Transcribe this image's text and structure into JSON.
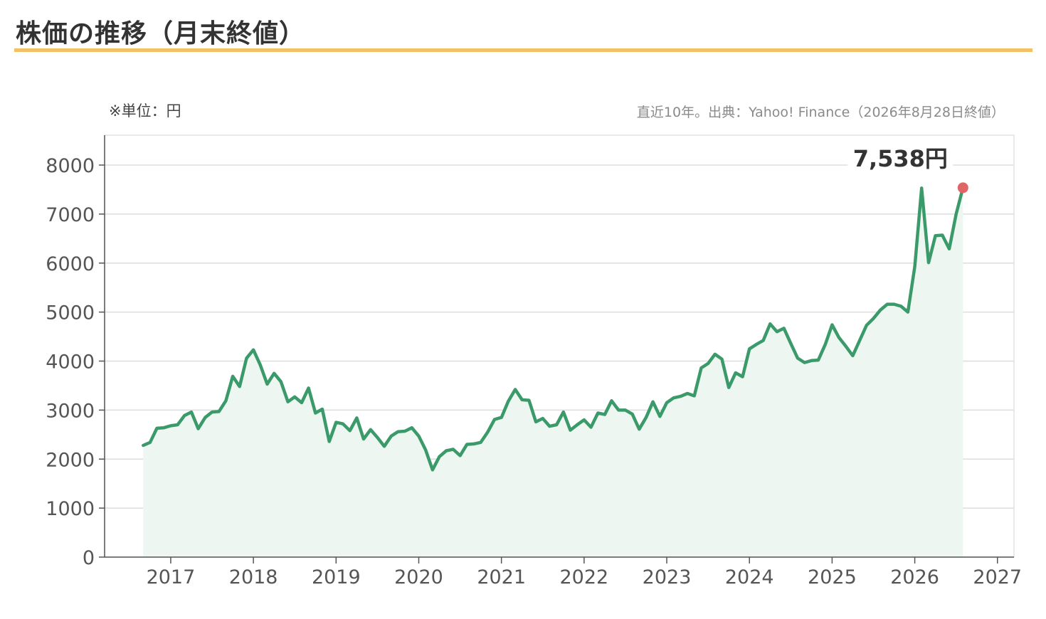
{
  "header": {
    "title": "株価の推移（月末終値）"
  },
  "chart_meta": {
    "unit_note": "※単位：円",
    "source_note": "直近10年。出典：Yahoo! Finance（2026年8月28日終値）",
    "last_value_label": "7,538円"
  },
  "colors": {
    "line": "#3a9a6a",
    "area": "#edf6f0",
    "marker": "#e06666",
    "grid": "#dddddd",
    "title_rule": "#f2c066"
  },
  "chart_data": {
    "type": "area",
    "x_unit": "year (decimal)",
    "xlim": [
      2016.2,
      2027.2
    ],
    "ylim": [
      0,
      8600
    ],
    "y_ticks": [
      0,
      1000,
      2000,
      3000,
      4000,
      5000,
      6000,
      7000,
      8000
    ],
    "x_ticks": [
      2017,
      2018,
      2019,
      2020,
      2021,
      2022,
      2023,
      2024,
      2025,
      2026,
      2027
    ],
    "grid": "horizontal",
    "legend": "none",
    "series": [
      {
        "values": [
          [
            2016.667,
            2280
          ],
          [
            2016.75,
            2340
          ],
          [
            2016.833,
            2630
          ],
          [
            2016.917,
            2640
          ],
          [
            2017.0,
            2680
          ],
          [
            2017.083,
            2700
          ],
          [
            2017.167,
            2890
          ],
          [
            2017.25,
            2960
          ],
          [
            2017.333,
            2620
          ],
          [
            2017.417,
            2850
          ],
          [
            2017.5,
            2960
          ],
          [
            2017.583,
            2970
          ],
          [
            2017.667,
            3190
          ],
          [
            2017.75,
            3690
          ],
          [
            2017.833,
            3480
          ],
          [
            2017.917,
            4060
          ],
          [
            2018.0,
            4230
          ],
          [
            2018.083,
            3920
          ],
          [
            2018.167,
            3530
          ],
          [
            2018.25,
            3750
          ],
          [
            2018.333,
            3580
          ],
          [
            2018.417,
            3170
          ],
          [
            2018.5,
            3270
          ],
          [
            2018.583,
            3150
          ],
          [
            2018.667,
            3450
          ],
          [
            2018.75,
            2940
          ],
          [
            2018.833,
            3020
          ],
          [
            2018.917,
            2360
          ],
          [
            2019.0,
            2750
          ],
          [
            2019.083,
            2720
          ],
          [
            2019.167,
            2580
          ],
          [
            2019.25,
            2840
          ],
          [
            2019.333,
            2410
          ],
          [
            2019.417,
            2600
          ],
          [
            2019.5,
            2440
          ],
          [
            2019.583,
            2260
          ],
          [
            2019.667,
            2470
          ],
          [
            2019.75,
            2560
          ],
          [
            2019.833,
            2570
          ],
          [
            2019.917,
            2640
          ],
          [
            2020.0,
            2470
          ],
          [
            2020.083,
            2190
          ],
          [
            2020.167,
            1780
          ],
          [
            2020.25,
            2050
          ],
          [
            2020.333,
            2170
          ],
          [
            2020.417,
            2200
          ],
          [
            2020.5,
            2070
          ],
          [
            2020.583,
            2300
          ],
          [
            2020.667,
            2310
          ],
          [
            2020.75,
            2340
          ],
          [
            2020.833,
            2550
          ],
          [
            2020.917,
            2810
          ],
          [
            2021.0,
            2850
          ],
          [
            2021.083,
            3180
          ],
          [
            2021.167,
            3420
          ],
          [
            2021.25,
            3210
          ],
          [
            2021.333,
            3200
          ],
          [
            2021.417,
            2760
          ],
          [
            2021.5,
            2830
          ],
          [
            2021.583,
            2670
          ],
          [
            2021.667,
            2700
          ],
          [
            2021.75,
            2960
          ],
          [
            2021.833,
            2590
          ],
          [
            2021.917,
            2700
          ],
          [
            2022.0,
            2800
          ],
          [
            2022.083,
            2650
          ],
          [
            2022.167,
            2940
          ],
          [
            2022.25,
            2910
          ],
          [
            2022.333,
            3190
          ],
          [
            2022.417,
            3000
          ],
          [
            2022.5,
            3000
          ],
          [
            2022.583,
            2920
          ],
          [
            2022.667,
            2610
          ],
          [
            2022.75,
            2850
          ],
          [
            2022.833,
            3170
          ],
          [
            2022.917,
            2870
          ],
          [
            2023.0,
            3150
          ],
          [
            2023.083,
            3250
          ],
          [
            2023.167,
            3280
          ],
          [
            2023.25,
            3340
          ],
          [
            2023.333,
            3290
          ],
          [
            2023.417,
            3860
          ],
          [
            2023.5,
            3950
          ],
          [
            2023.583,
            4140
          ],
          [
            2023.667,
            4040
          ],
          [
            2023.75,
            3460
          ],
          [
            2023.833,
            3760
          ],
          [
            2023.917,
            3680
          ],
          [
            2024.0,
            4250
          ],
          [
            2024.083,
            4340
          ],
          [
            2024.167,
            4420
          ],
          [
            2024.25,
            4760
          ],
          [
            2024.333,
            4600
          ],
          [
            2024.417,
            4670
          ],
          [
            2024.5,
            4360
          ],
          [
            2024.583,
            4060
          ],
          [
            2024.667,
            3970
          ],
          [
            2024.75,
            4010
          ],
          [
            2024.833,
            4020
          ],
          [
            2024.917,
            4340
          ],
          [
            2025.0,
            4740
          ],
          [
            2025.083,
            4480
          ],
          [
            2025.167,
            4300
          ],
          [
            2025.25,
            4110
          ],
          [
            2025.333,
            4420
          ],
          [
            2025.417,
            4730
          ],
          [
            2025.5,
            4870
          ],
          [
            2025.583,
            5040
          ],
          [
            2025.667,
            5160
          ],
          [
            2025.75,
            5160
          ],
          [
            2025.833,
            5120
          ],
          [
            2025.917,
            5000
          ],
          [
            2026.0,
            5930
          ],
          [
            2026.083,
            7530
          ],
          [
            2026.167,
            6010
          ],
          [
            2026.25,
            6560
          ],
          [
            2026.333,
            6570
          ],
          [
            2026.417,
            6290
          ],
          [
            2026.5,
            7000
          ],
          [
            2026.583,
            7538
          ]
        ]
      }
    ],
    "last_point": {
      "x": 2026.583,
      "y": 7538,
      "label": "7,538円"
    }
  }
}
